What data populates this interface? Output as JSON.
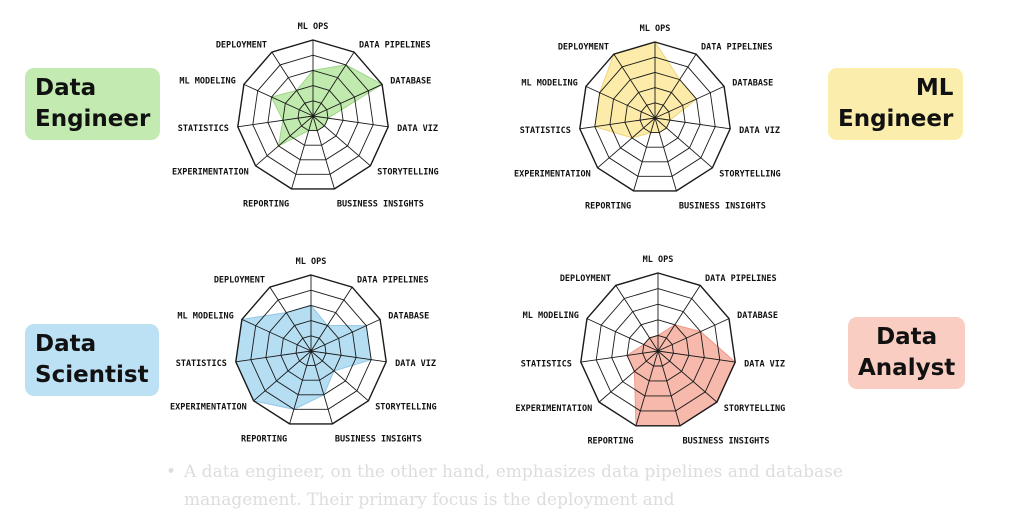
{
  "roles": [
    {
      "title": "Data\nEngineer",
      "color": "#c3ebb1"
    },
    {
      "title": "ML\nEngineer",
      "color": "#fbeeac"
    },
    {
      "title": "Data\nScientist",
      "color": "#bde1f4"
    },
    {
      "title": "Data\nAnalyst",
      "color": "#f9cdc1"
    }
  ],
  "chart_data": [
    {
      "type": "radar",
      "axes": [
        "ML OPS",
        "DATA PIPELINES",
        "DATABASE",
        "DATA VIZ",
        "STORYTELLING",
        "BUSINESS INSIGHTS",
        "REPORTING",
        "EXPERIMENTATION",
        "STATISTICS",
        "ML MODELING",
        "DEPLOYMENT"
      ],
      "levels": 5,
      "max": 5,
      "values": [
        3,
        4,
        5,
        1,
        1,
        1,
        1,
        3,
        2,
        3,
        2
      ],
      "fill": "#b6e6a0",
      "stroke": "#9ed58a"
    },
    {
      "type": "radar",
      "axes": [
        "ML OPS",
        "DATA PIPELINES",
        "DATABASE",
        "DATA VIZ",
        "STORYTELLING",
        "BUSINESS INSIGHTS",
        "REPORTING",
        "EXPERIMENTATION",
        "STATISTICS",
        "ML MODELING",
        "DEPLOYMENT"
      ],
      "levels": 5,
      "max": 5,
      "values": [
        5,
        3,
        3,
        1,
        1,
        1,
        1,
        2,
        4,
        4,
        5
      ],
      "fill": "#fbe79a",
      "stroke": "#eed57a"
    },
    {
      "type": "radar",
      "axes": [
        "ML OPS",
        "DATA PIPELINES",
        "DATABASE",
        "DATA VIZ",
        "STORYTELLING",
        "BUSINESS INSIGHTS",
        "REPORTING",
        "EXPERIMENTATION",
        "STATISTICS",
        "ML MODELING",
        "DEPLOYMENT"
      ],
      "levels": 5,
      "max": 5,
      "values": [
        3,
        2,
        4,
        4,
        2,
        3,
        4,
        5,
        5,
        5,
        3
      ],
      "fill": "#a9d8f1",
      "stroke": "#8fc6e6"
    },
    {
      "type": "radar",
      "axes": [
        "ML OPS",
        "DATA PIPELINES",
        "DATABASE",
        "DATA VIZ",
        "STORYTELLING",
        "BUSINESS INSIGHTS",
        "REPORTING",
        "EXPERIMENTATION",
        "STATISTICS",
        "ML MODELING",
        "DEPLOYMENT"
      ],
      "levels": 5,
      "max": 5,
      "values": [
        1,
        2,
        3,
        5,
        5,
        5,
        5,
        2,
        2,
        1,
        1
      ],
      "fill": "#f6ad9c",
      "stroke": "#ec9a88"
    }
  ],
  "bullet": {
    "marker": "•",
    "text": "A data engineer, on the other hand, emphasizes data pipelines and database management. Their primary focus is the deployment and"
  }
}
